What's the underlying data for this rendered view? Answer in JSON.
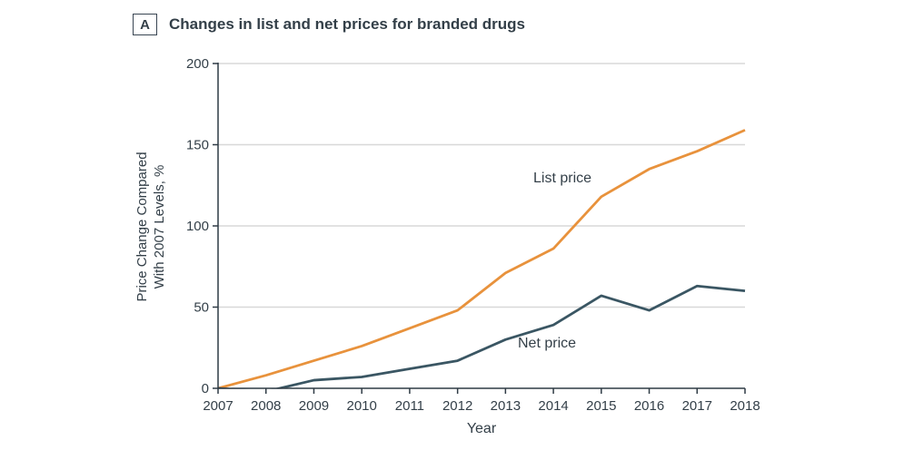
{
  "panel": {
    "letter": "A",
    "title": "Changes in list and net prices for branded drugs"
  },
  "chart_data": {
    "type": "line",
    "title": "Changes in list and net prices for branded drugs",
    "x": [
      2007,
      2008,
      2009,
      2010,
      2011,
      2012,
      2013,
      2014,
      2015,
      2016,
      2017,
      2018
    ],
    "x_axis_label": "Year",
    "y_axis_label": "Price Change Compared With 2007 Levels, %",
    "y_label_lines": [
      "Price Change Compared",
      "With 2007 Levels, %"
    ],
    "y_ticks": [
      0,
      50,
      100,
      150,
      200
    ],
    "ylim": [
      0,
      200
    ],
    "grid": "horizontal",
    "legend_position": "inline-annotations",
    "series": [
      {
        "name": "List price",
        "color": "#E8923C",
        "values": [
          0,
          8,
          17,
          26,
          37,
          48,
          71,
          86,
          118,
          135,
          146,
          159
        ]
      },
      {
        "name": "Net price",
        "color": "#3A5663",
        "values": [
          0,
          -2,
          5,
          7,
          12,
          17,
          30,
          39,
          57,
          48,
          63,
          60
        ]
      }
    ]
  },
  "colors": {
    "list_line": "#E8923C",
    "net_line": "#3A5663",
    "gridline": "#D8D8D8",
    "axis": "#2F3B45",
    "text": "#333F48",
    "background": "#FFFFFF"
  }
}
